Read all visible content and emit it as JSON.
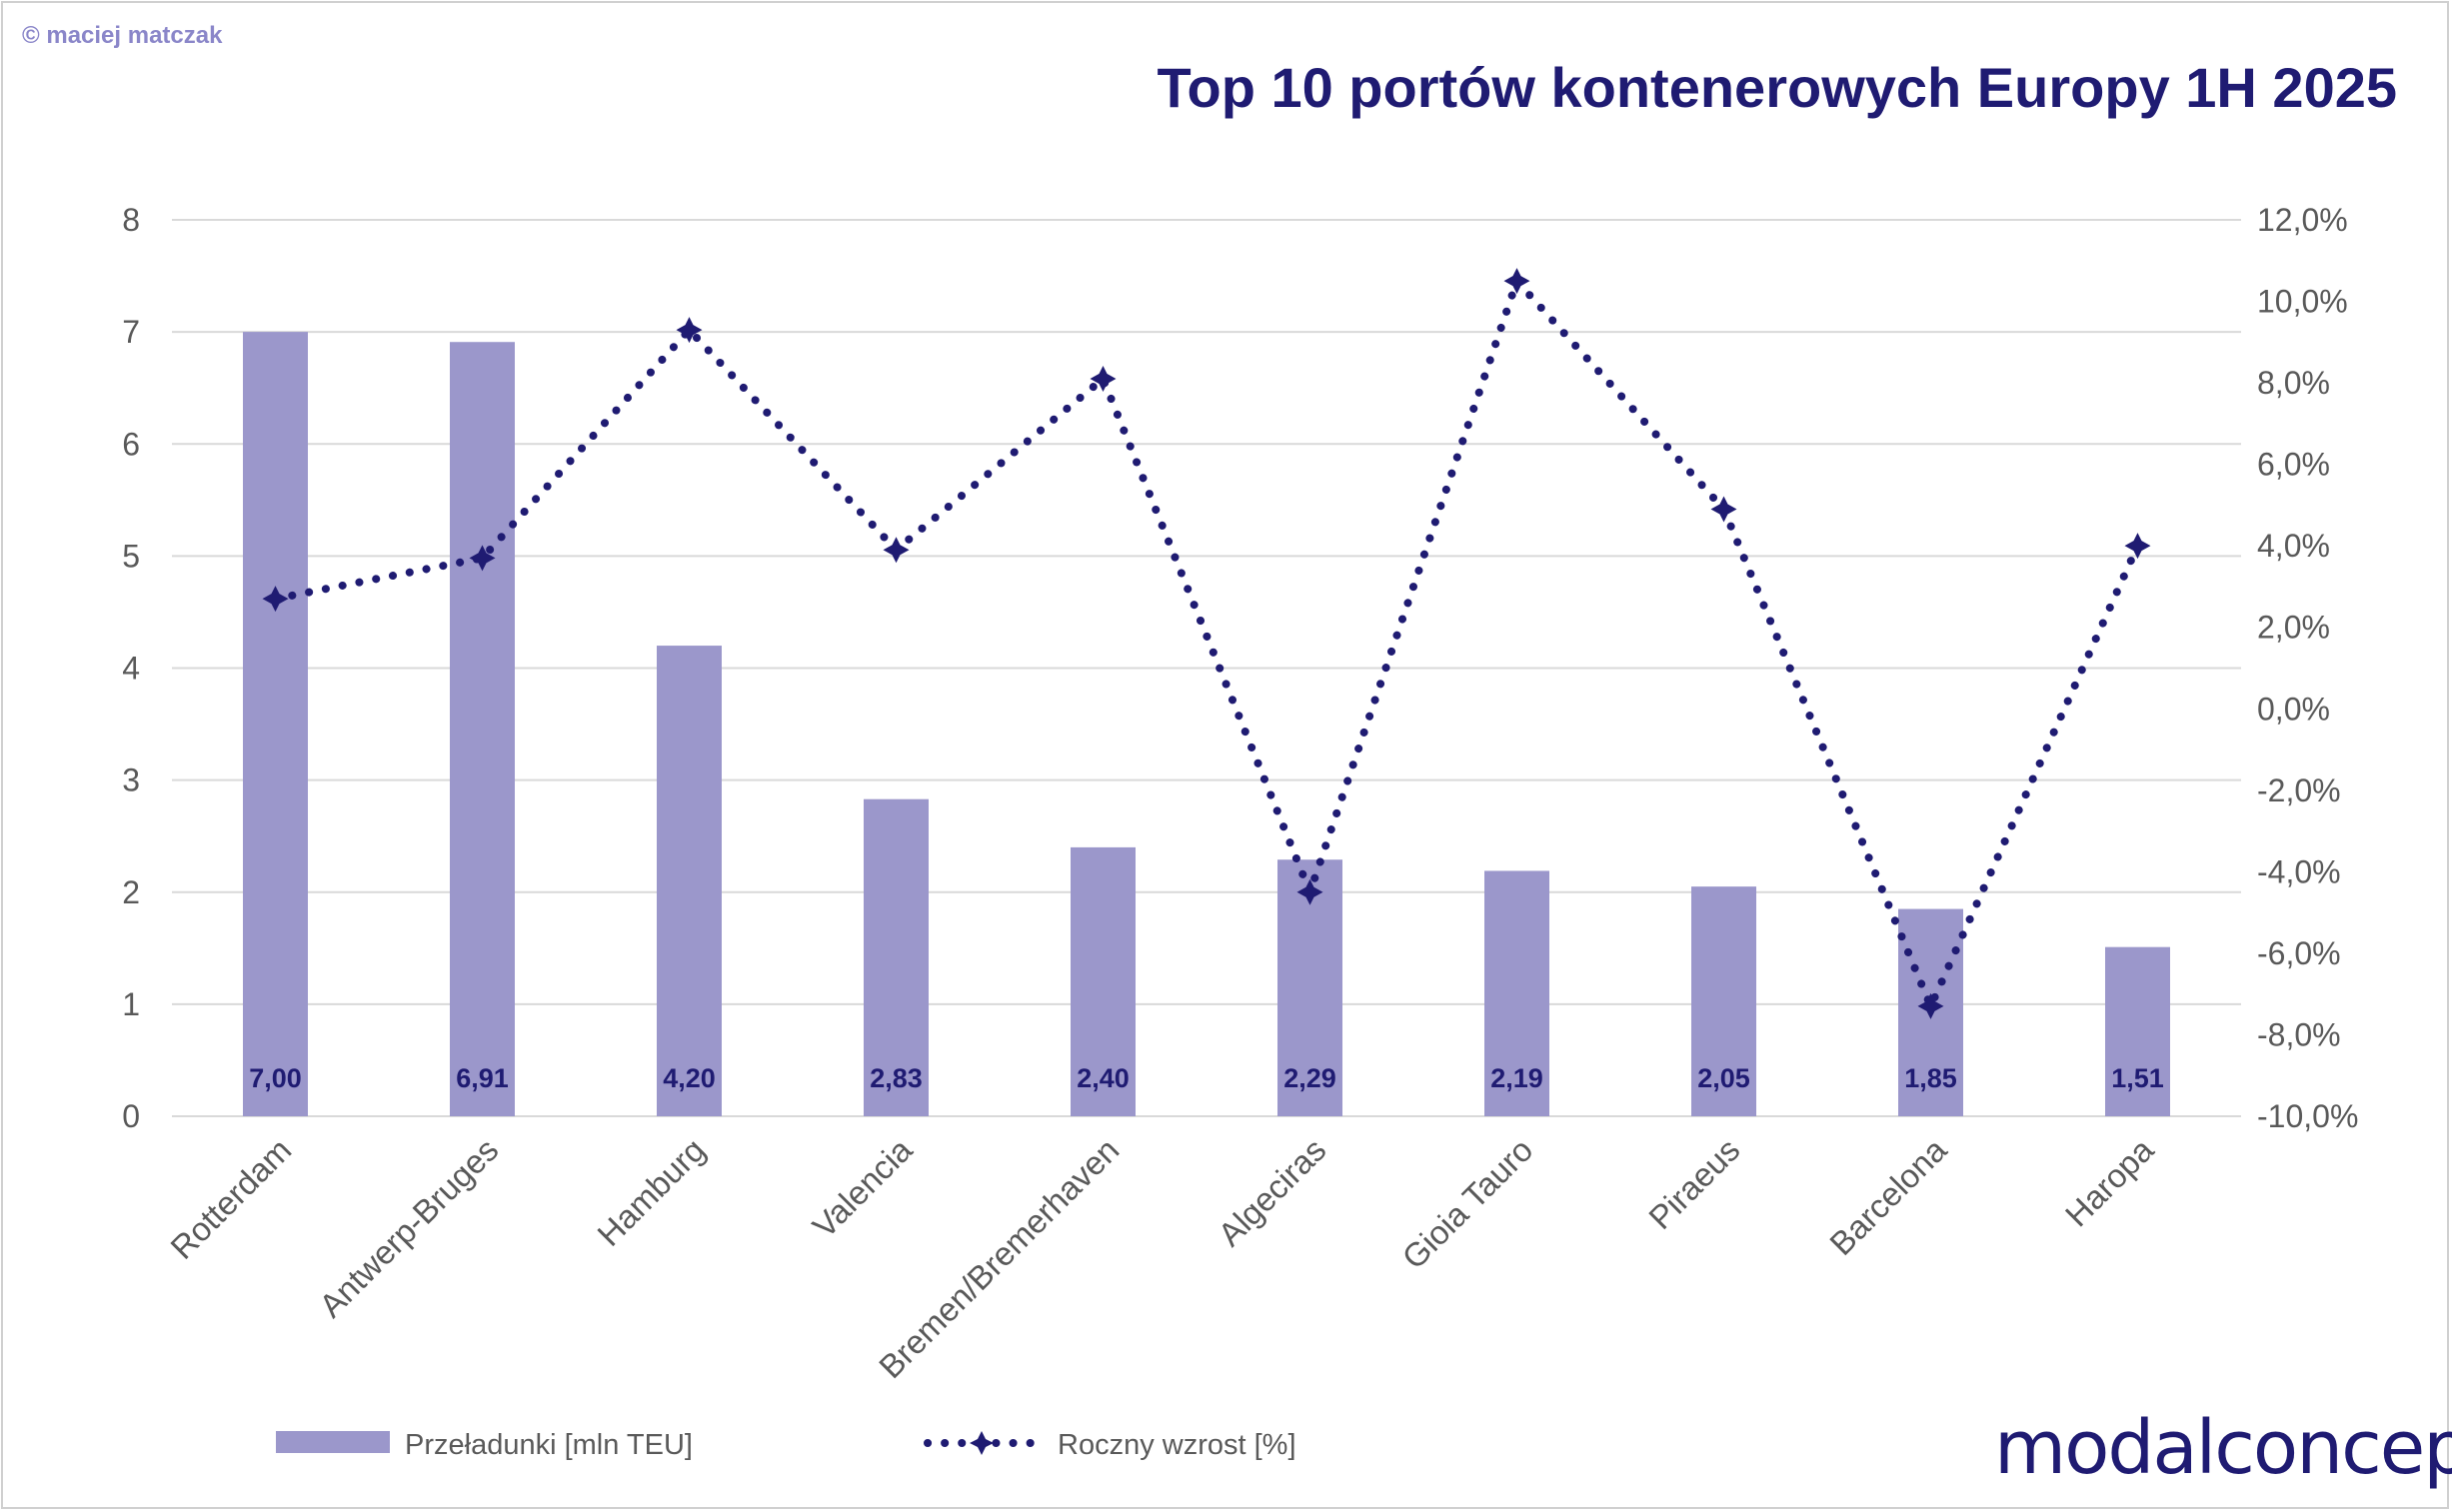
{
  "header": {
    "copyright": "© maciej matczak",
    "brand": "modalconcept"
  },
  "chart_data": {
    "type": "bar",
    "title": "Top 10 portów kontenerowych Europy 1H 2025",
    "categories": [
      "Rotterdam",
      "Antwerp-Bruges",
      "Hamburg",
      "Valencia",
      "Bremen/Bremerhaven",
      "Algeciras",
      "Gioia Tauro",
      "Piraeus",
      "Barcelona",
      "Haropa"
    ],
    "series": [
      {
        "name": "Przeładunki [mln TEU]",
        "kind": "bar",
        "axis": "left",
        "color": "#9b97cb",
        "values": [
          7.0,
          6.91,
          4.2,
          2.83,
          2.4,
          2.29,
          2.19,
          2.05,
          1.85,
          1.51
        ],
        "labels": [
          "7,00",
          "6,91",
          "4,20",
          "2,83",
          "2,40",
          "2,29",
          "2,19",
          "2,05",
          "1,85",
          "1,51"
        ]
      },
      {
        "name": "Roczny wzrost [%]",
        "kind": "line",
        "axis": "right",
        "color": "#1f1b72",
        "values": [
          2.7,
          3.7,
          9.3,
          3.9,
          8.1,
          -4.5,
          10.5,
          4.9,
          -7.3,
          4.0
        ]
      }
    ],
    "y_left": {
      "min": 0,
      "max": 8,
      "ticks": [
        "0",
        "1",
        "2",
        "3",
        "4",
        "5",
        "6",
        "7",
        "8"
      ]
    },
    "y_right": {
      "min": -10,
      "max": 12,
      "ticks": [
        "-10,0%",
        "-8,0%",
        "-6,0%",
        "-4,0%",
        "-2,0%",
        "0,0%",
        "2,0%",
        "4,0%",
        "6,0%",
        "8,0%",
        "10,0%",
        "12,0%"
      ]
    },
    "grid": true,
    "legend": "bottom-left"
  }
}
